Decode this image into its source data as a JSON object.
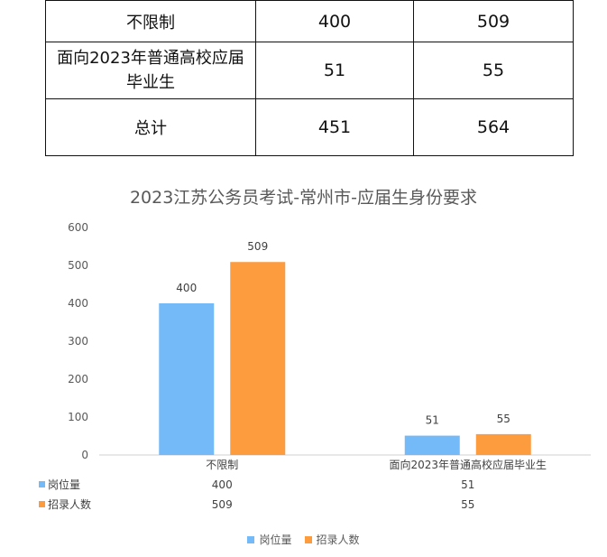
{
  "table": {
    "rows": [
      [
        "不限制",
        "400",
        "509"
      ],
      [
        "面向2023年普通高校应届毕业生",
        "51",
        "55"
      ],
      [
        "总计",
        "451",
        "564"
      ]
    ]
  },
  "chart_data": {
    "type": "bar",
    "title": "2023江苏公务员考试-常州市-应届生身份要求",
    "categories": [
      "不限制",
      "面向2023年普通高校应届毕业生"
    ],
    "series": [
      {
        "name": "岗位量",
        "values": [
          400,
          51
        ],
        "color": "#74BAF9"
      },
      {
        "name": "招录人数",
        "values": [
          509,
          55
        ],
        "color": "#FD9C3F"
      }
    ],
    "ylim": [
      0,
      600
    ],
    "yticks": [
      0,
      100,
      200,
      300,
      400,
      500,
      600
    ],
    "data_table_below": true,
    "legend_position": "bottom",
    "grid": false
  }
}
